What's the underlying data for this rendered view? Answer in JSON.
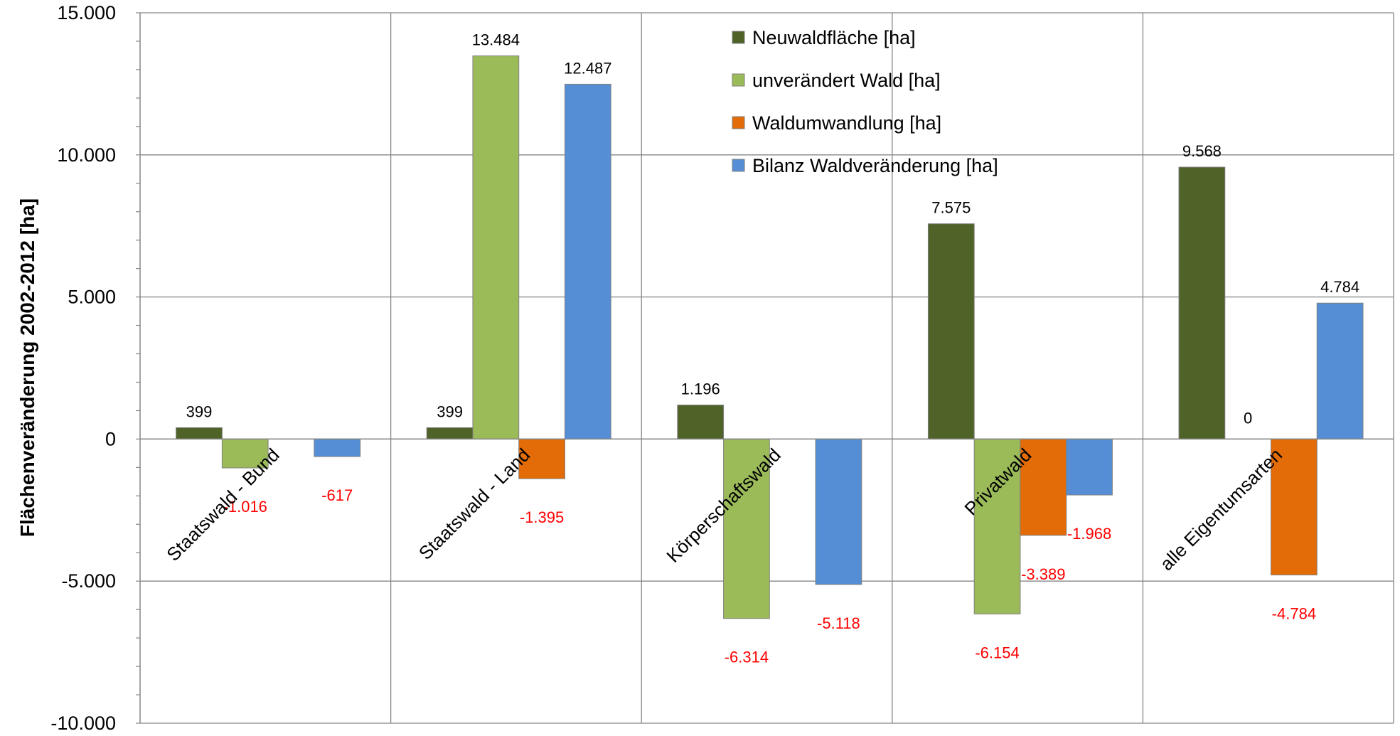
{
  "chart_data": {
    "type": "bar",
    "ylabel": "Flächenveränderung 2002-2012 [ha]",
    "ylim": [
      -10000,
      15000
    ],
    "yticks": [
      15000,
      10000,
      5000,
      0,
      -5000,
      -10000
    ],
    "ytick_labels": [
      "15.000",
      "10.000",
      "5.000",
      "0",
      "-5.000",
      "-10.000"
    ],
    "grid": true,
    "legend_position": "top-center",
    "categories": [
      "Staatswald - Bund",
      "Staatswald - Land",
      "Körperschaftswald",
      "Privatwald",
      "alle Eigentumsarten"
    ],
    "series": [
      {
        "name": "Neuwaldfläche [ha]",
        "color": "#4f6228",
        "values": [
          399,
          399,
          1196,
          7575,
          9568
        ],
        "labels": [
          "399",
          "399",
          "1.196",
          "7.575",
          "9.568"
        ]
      },
      {
        "name": "unverändert Wald [ha]",
        "color": "#9bbb59",
        "values": [
          -1016,
          13484,
          -6314,
          -6154,
          0
        ],
        "labels": [
          "-1.016",
          "13.484",
          "-6.314",
          "-6.154",
          "0"
        ]
      },
      {
        "name": "Waldumwandlung [ha]",
        "color": "#e36c09",
        "values": [
          0,
          -1395,
          0,
          -3389,
          -4784
        ],
        "labels": [
          "",
          "-1.395",
          "",
          "-3.389",
          "-4.784"
        ]
      },
      {
        "name": "Bilanz Waldveränderung [ha]",
        "color": "#558ed5",
        "values": [
          -617,
          12487,
          -5118,
          -1968,
          4784
        ],
        "labels": [
          "-617",
          "12.487",
          "-5.118",
          "-1.968",
          "4.784"
        ]
      }
    ],
    "positive_label_color": "#000000",
    "negative_label_color": "#ff0000"
  }
}
